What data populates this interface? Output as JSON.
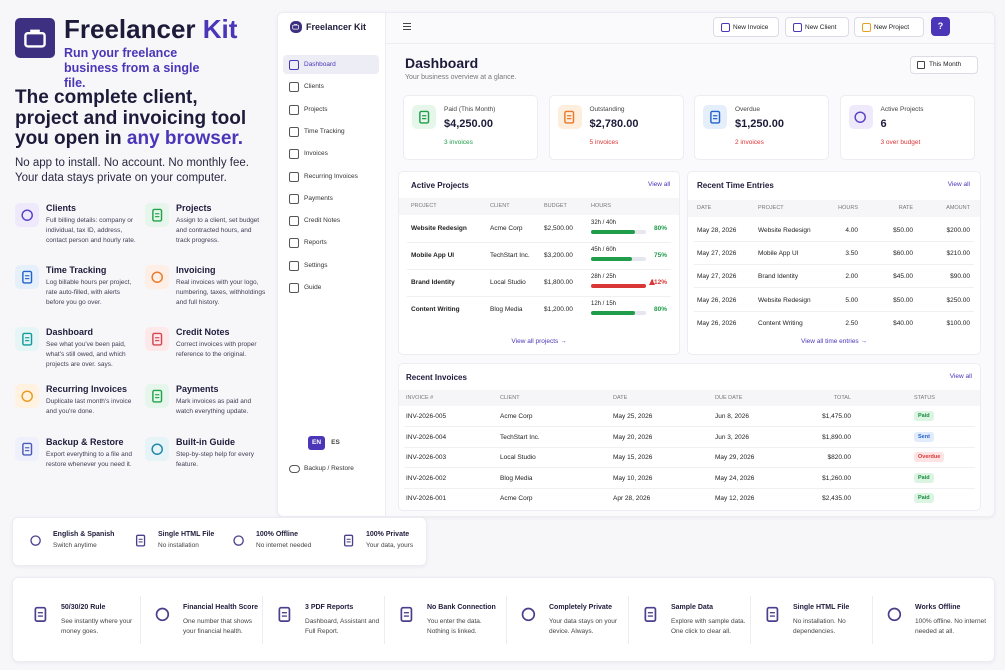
{
  "brand": {
    "title": "Freelancer",
    "title_accent": "Kit",
    "tagline": "Run your freelance business from a single file."
  },
  "hero": {
    "headline": "The complete client, project and invoicing tool you open in",
    "headline_accent": "any browser.",
    "sub": "No app to install. No account. No monthly fee. Your data stays private on your computer."
  },
  "features": [
    {
      "title": "Clients",
      "text": "Full billing details: company or individual, tax ID, address, contact person and hourly rate."
    },
    {
      "title": "Projects",
      "text": "Assign to a client, set budget and contracted hours, and track progress."
    },
    {
      "title": "Time Tracking",
      "text": "Log billable hours per project, rate auto-filled, with alerts before you go over."
    },
    {
      "title": "Invoicing",
      "text": "Real invoices with your logo, numbering, taxes, withholdings and full history."
    },
    {
      "title": "Dashboard",
      "text": "See what you've been paid, what's still owed, and which projects are over. says."
    },
    {
      "title": "Credit Notes",
      "text": "Correct invoices with proper reference to the original."
    },
    {
      "title": "Recurring Invoices",
      "text": "Duplicate last month's invoice and you're done."
    },
    {
      "title": "Payments",
      "text": "Mark invoices as paid and watch everything update."
    },
    {
      "title": "Backup & Restore",
      "text": "Export everything to a file and restore whenever you need it."
    },
    {
      "title": "Built-in Guide",
      "text": "Step-by-step help for every feature."
    }
  ],
  "app": {
    "logo": "Freelancer Kit",
    "nav": [
      "Dashboard",
      "Clients",
      "Projects",
      "Time Tracking",
      "Invoices",
      "Recurring Invoices",
      "Payments",
      "Credit Notes",
      "Reports",
      "Settings",
      "Guide"
    ],
    "lang": [
      "EN",
      "ES"
    ],
    "backup": "Backup / Restore",
    "actions": [
      "New Invoice",
      "New Client",
      "New Project"
    ],
    "help": "?",
    "page_title": "Dashboard",
    "page_sub": "Your business overview at a glance.",
    "period": "This Month",
    "stats": [
      {
        "label": "Paid (This Month)",
        "value": "$4,250.00",
        "note": "3 invoices"
      },
      {
        "label": "Outstanding",
        "value": "$2,780.00",
        "note": "5 invoices"
      },
      {
        "label": "Overdue",
        "value": "$1,250.00",
        "note": "2 invoices"
      },
      {
        "label": "Active Projects",
        "value": "6",
        "note": "3 over budget"
      }
    ],
    "active_projects": {
      "title": "Active Projects",
      "view_all": "View all",
      "columns": [
        "PROJECT",
        "CLIENT",
        "BUDGET",
        "HOURS"
      ],
      "rows": [
        [
          "Website Redesign",
          "Acme Corp",
          "$2,500.00",
          "32h / 40h",
          "80%"
        ],
        [
          "Mobile App UI",
          "TechStart Inc.",
          "$3,200.00",
          "45h / 60h",
          "75%"
        ],
        [
          "Brand Identity",
          "Local Studio",
          "$1,800.00",
          "28h / 25h",
          "112%"
        ],
        [
          "Content Writing",
          "Blog Media",
          "$1,200.00",
          "12h / 15h",
          "80%"
        ]
      ],
      "footer": "View all projects →"
    },
    "time_entries": {
      "title": "Recent Time Entries",
      "view_all": "View all",
      "columns": [
        "DATE",
        "PROJECT",
        "HOURS",
        "RATE",
        "AMOUNT"
      ],
      "rows": [
        [
          "May 28, 2026",
          "Website Redesign",
          "4.00",
          "$50.00",
          "$200.00"
        ],
        [
          "May 27, 2026",
          "Mobile App UI",
          "3.50",
          "$60.00",
          "$210.00"
        ],
        [
          "May 27, 2026",
          "Brand Identity",
          "2.00",
          "$45.00",
          "$90.00"
        ],
        [
          "May 26, 2026",
          "Website Redesign",
          "5.00",
          "$50.00",
          "$250.00"
        ],
        [
          "May 26, 2026",
          "Content Writing",
          "2.50",
          "$40.00",
          "$100.00"
        ]
      ],
      "footer": "View all time entries →"
    },
    "invoices": {
      "title": "Recent Invoices",
      "view_all": "View all",
      "columns": [
        "INVOICE #",
        "CLIENT",
        "DATE",
        "DUE DATE",
        "TOTAL",
        "STATUS"
      ],
      "rows": [
        [
          "INV-2026-005",
          "Acme Corp",
          "May 25, 2026",
          "Jun 8, 2026",
          "$1,475.00",
          "Paid"
        ],
        [
          "INV-2026-004",
          "TechStart Inc.",
          "May 20, 2026",
          "Jun 3, 2026",
          "$1,890.00",
          "Sent"
        ],
        [
          "INV-2026-003",
          "Local Studio",
          "May 15, 2026",
          "May 29, 2026",
          "$820.00",
          "Overdue"
        ],
        [
          "INV-2026-002",
          "Blog Media",
          "May 10, 2026",
          "May 24, 2026",
          "$1,260.00",
          "Paid"
        ],
        [
          "INV-2026-001",
          "Acme Corp",
          "Apr 28, 2026",
          "May 12, 2026",
          "$2,435.00",
          "Paid"
        ]
      ]
    }
  },
  "highlights": [
    {
      "title": "English & Spanish",
      "text": "Switch anytime"
    },
    {
      "title": "Single HTML File",
      "text": "No installation"
    },
    {
      "title": "100% Offline",
      "text": "No internet needed"
    },
    {
      "title": "100% Private",
      "text": "Your data, yours"
    }
  ],
  "benefits": [
    {
      "title": "50/30/20 Rule",
      "text": "See instantly where your money goes."
    },
    {
      "title": "Financial Health Score",
      "text": "One number that shows your financial health."
    },
    {
      "title": "3 PDF Reports",
      "text": "Dashboard, Assistant and Full Report."
    },
    {
      "title": "No Bank Connection",
      "text": "You enter the data. Nothing is linked."
    },
    {
      "title": "Completely Private",
      "text": "Your data stays on your device. Always."
    },
    {
      "title": "Sample Data",
      "text": "Explore with sample data. One click to clear all."
    },
    {
      "title": "Single HTML File",
      "text": "No installation. No dependencies."
    },
    {
      "title": "Works Offline",
      "text": "100% offline. No internet needed at all."
    }
  ]
}
